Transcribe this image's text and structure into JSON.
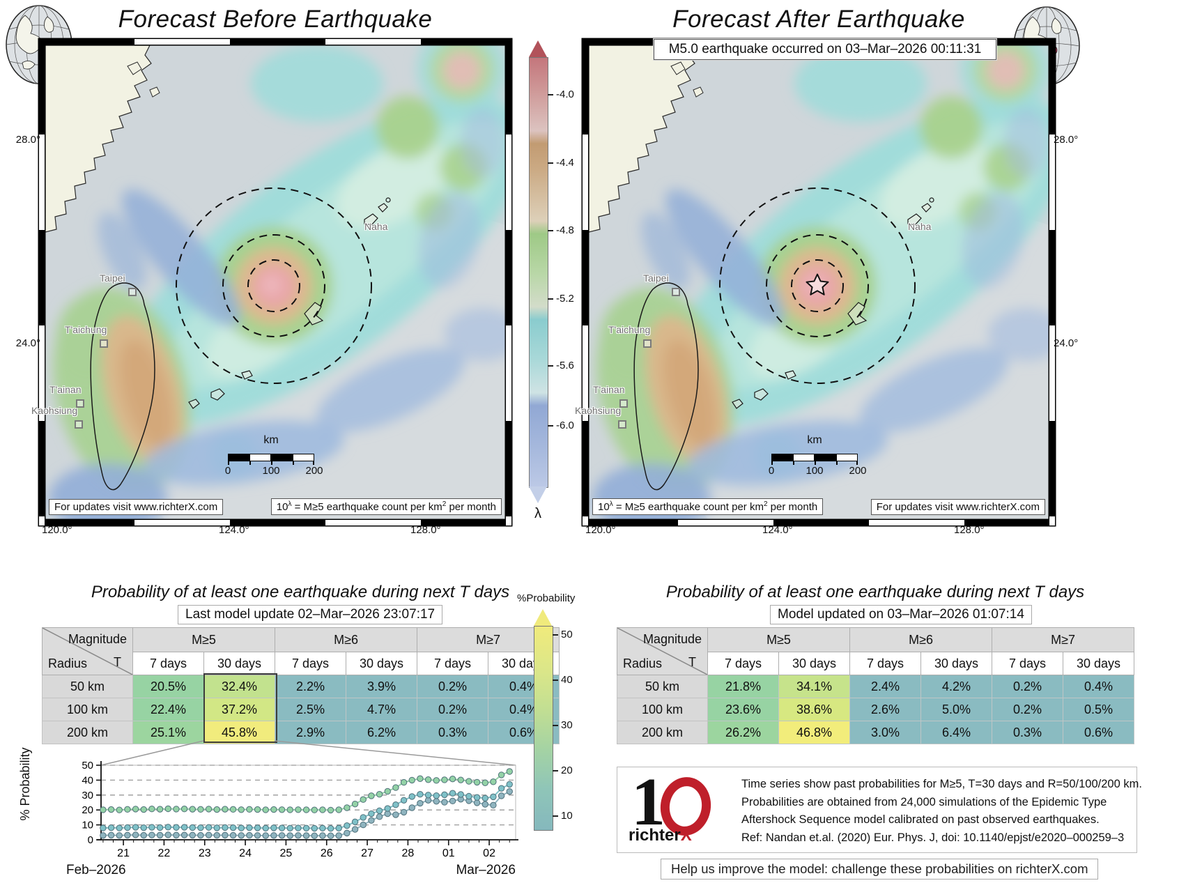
{
  "panels": {
    "left": {
      "title": "Forecast Before Earthquake"
    },
    "right": {
      "title": "Forecast After Earthquake",
      "banner": "M5.0 earthquake occurred on 03–Mar–2026 00:11:31"
    }
  },
  "map": {
    "cities": [
      "Taipei",
      "T'aichung",
      "T'ainan",
      "Kaohsiung",
      "Naha"
    ],
    "lat_ticks": [
      "28.0°",
      "24.0°"
    ],
    "lon_ticks": [
      "120.0°",
      "124.0°",
      "128.0°"
    ],
    "scalebar": {
      "unit": "km",
      "ticks": [
        "0",
        "100",
        "200"
      ]
    },
    "footer_updates": "For updates visit www.richterX.com",
    "footer_formula": {
      "p1": "10",
      "sup1": "λ",
      "p2": " = M≥5 earthquake count per km",
      "sup2": "2",
      "p3": " per month"
    }
  },
  "lambda_bar": {
    "ticks": [
      "-4.0",
      "-4.4",
      "-4.8",
      "-5.2",
      "-5.6",
      "-6.0"
    ],
    "label": "λ"
  },
  "prob_bar": {
    "title": "%Probability",
    "ticks": [
      "50",
      "40",
      "30",
      "20",
      "10"
    ]
  },
  "tables": {
    "header": {
      "magnitude": "Magnitude",
      "radius": "Radius",
      "t": "T",
      "groups": [
        "M≥5",
        "M≥6",
        "M≥7"
      ],
      "subcols": [
        "7 days",
        "30 days",
        "7 days",
        "30 days",
        "7 days",
        "30 days"
      ]
    },
    "left": {
      "title": "Probability of at least one earthquake during next T days",
      "caption": "Last model update 02–Mar–2026 23:07:17",
      "rows": [
        {
          "radius": "50 km",
          "cells": [
            {
              "v": "20.5%",
              "c": "#97d3a3"
            },
            {
              "v": "32.4%",
              "c": "#c2e28e"
            },
            {
              "v": "2.2%",
              "c": "#8abbc1"
            },
            {
              "v": "3.9%",
              "c": "#8abbc1"
            },
            {
              "v": "0.2%",
              "c": "#8abbc1"
            },
            {
              "v": "0.4%",
              "c": "#8abbc1"
            }
          ]
        },
        {
          "radius": "100 km",
          "cells": [
            {
              "v": "22.4%",
              "c": "#97d3a3"
            },
            {
              "v": "37.2%",
              "c": "#d2e785"
            },
            {
              "v": "2.5%",
              "c": "#8abbc1"
            },
            {
              "v": "4.7%",
              "c": "#8abbc1"
            },
            {
              "v": "0.2%",
              "c": "#8abbc1"
            },
            {
              "v": "0.4%",
              "c": "#8abbc1"
            }
          ]
        },
        {
          "radius": "200 km",
          "cells": [
            {
              "v": "25.1%",
              "c": "#9cd59f"
            },
            {
              "v": "45.8%",
              "c": "#f1ec7d"
            },
            {
              "v": "2.9%",
              "c": "#8abbc1"
            },
            {
              "v": "6.2%",
              "c": "#8abbc1"
            },
            {
              "v": "0.3%",
              "c": "#8abbc1"
            },
            {
              "v": "0.6%",
              "c": "#8abbc1"
            }
          ]
        }
      ]
    },
    "right": {
      "title": "Probability of at least one earthquake during next T days",
      "caption": "Model updated on 03–Mar–2026 01:07:14",
      "rows": [
        {
          "radius": "50 km",
          "cells": [
            {
              "v": "21.8%",
              "c": "#97d3a3"
            },
            {
              "v": "34.1%",
              "c": "#c6e38b"
            },
            {
              "v": "2.4%",
              "c": "#8abbc1"
            },
            {
              "v": "4.2%",
              "c": "#8abbc1"
            },
            {
              "v": "0.2%",
              "c": "#8abbc1"
            },
            {
              "v": "0.4%",
              "c": "#8abbc1"
            }
          ]
        },
        {
          "radius": "100 km",
          "cells": [
            {
              "v": "23.6%",
              "c": "#97d3a3"
            },
            {
              "v": "38.6%",
              "c": "#d7e881"
            },
            {
              "v": "2.6%",
              "c": "#8abbc1"
            },
            {
              "v": "5.0%",
              "c": "#8abbc1"
            },
            {
              "v": "0.2%",
              "c": "#8abbc1"
            },
            {
              "v": "0.5%",
              "c": "#8abbc1"
            }
          ]
        },
        {
          "radius": "200 km",
          "cells": [
            {
              "v": "26.2%",
              "c": "#9cd59f"
            },
            {
              "v": "46.8%",
              "c": "#f2ed7b"
            },
            {
              "v": "3.0%",
              "c": "#8abbc1"
            },
            {
              "v": "6.4%",
              "c": "#8abbc1"
            },
            {
              "v": "0.3%",
              "c": "#8abbc1"
            },
            {
              "v": "0.6%",
              "c": "#8abbc1"
            }
          ]
        }
      ]
    }
  },
  "chart_data": {
    "type": "line",
    "title": "",
    "ylabel": "% Probability",
    "xlabel_left": "Feb–2026",
    "xlabel_right": "Mar–2026",
    "ylim": [
      0,
      50
    ],
    "xlim": [
      20.45,
      30.65
    ],
    "grid": "dashed-horizontal",
    "legend": "none",
    "y_ticks": [
      0,
      10,
      20,
      30,
      40,
      50
    ],
    "x_ticks": [
      {
        "v": 21,
        "label": "21"
      },
      {
        "v": 22,
        "label": "22"
      },
      {
        "v": 23,
        "label": "23"
      },
      {
        "v": 24,
        "label": "24"
      },
      {
        "v": 25,
        "label": "25"
      },
      {
        "v": 26,
        "label": "26"
      },
      {
        "v": 27,
        "label": "27"
      },
      {
        "v": 28,
        "label": "28"
      },
      {
        "v": 29,
        "label": "01"
      },
      {
        "v": 30,
        "label": "02"
      }
    ],
    "x": [
      20.5,
      20.7,
      20.9,
      21.1,
      21.3,
      21.5,
      21.7,
      21.9,
      22.1,
      22.3,
      22.5,
      22.7,
      22.9,
      23.1,
      23.3,
      23.5,
      23.7,
      23.9,
      24.1,
      24.3,
      24.5,
      24.7,
      24.9,
      25.1,
      25.3,
      25.5,
      25.7,
      25.9,
      26.1,
      26.3,
      26.5,
      26.7,
      26.9,
      27.1,
      27.3,
      27.5,
      27.7,
      27.9,
      28.1,
      28.3,
      28.5,
      28.7,
      28.9,
      29.1,
      29.3,
      29.5,
      29.7,
      29.9,
      30.1,
      30.3,
      30.5
    ],
    "series": [
      {
        "name": "M≥5, T=30 days, R=200 km",
        "color": "#93d2a6",
        "values": [
          20.1,
          20.3,
          20.0,
          20.4,
          20.6,
          20.3,
          20.7,
          20.5,
          20.8,
          20.6,
          20.7,
          20.5,
          20.4,
          20.6,
          20.3,
          20.5,
          20.4,
          20.2,
          20.4,
          20.3,
          20.1,
          20.3,
          20.2,
          20.1,
          20.2,
          20.1,
          20.0,
          20.1,
          19.9,
          20.1,
          21.5,
          24.0,
          27.0,
          29.5,
          30.5,
          32.5,
          35.0,
          38.5,
          40.0,
          41.0,
          40.3,
          39.8,
          40.2,
          40.8,
          40.1,
          39.2,
          38.6,
          38.2,
          38.9,
          43.5,
          45.8
        ]
      },
      {
        "name": "M≥5, T=30 days, R=100 km",
        "color": "#7fc1c8",
        "values": [
          7.9,
          8.1,
          7.9,
          8.2,
          8.4,
          8.1,
          8.4,
          8.2,
          8.5,
          8.3,
          8.4,
          8.2,
          8.1,
          8.3,
          8.0,
          8.2,
          8.1,
          7.9,
          8.1,
          8.0,
          7.8,
          8.0,
          7.9,
          7.8,
          7.9,
          7.8,
          7.7,
          7.8,
          7.6,
          7.8,
          9.5,
          12.0,
          15.0,
          17.5,
          19.5,
          21.0,
          23.5,
          26.5,
          29.0,
          30.5,
          30.0,
          29.6,
          30.2,
          31.2,
          30.4,
          29.2,
          28.4,
          27.9,
          28.8,
          34.5,
          37.2
        ]
      },
      {
        "name": "M≥5, T=30 days, R=50 km",
        "color": "#8fb4bf",
        "values": [
          2.9,
          3.1,
          2.9,
          3.1,
          3.3,
          3.0,
          3.2,
          3.1,
          3.3,
          3.1,
          3.2,
          3.1,
          3.0,
          3.2,
          3.0,
          3.1,
          3.0,
          2.9,
          3.0,
          2.9,
          2.8,
          2.9,
          2.9,
          2.8,
          2.9,
          2.8,
          2.7,
          2.8,
          2.7,
          2.8,
          4.5,
          7.0,
          10.0,
          13.0,
          15.5,
          17.5,
          16.8,
          18.5,
          21.5,
          24.5,
          26.5,
          25.8,
          25.2,
          26.0,
          27.2,
          26.2,
          24.8,
          23.8,
          23.2,
          29.5,
          32.4
        ]
      }
    ]
  },
  "info_box": {
    "line1": "Time series show past probabilities for M≥5, T=30 days and R=50/100/200 km.",
    "line2": "Probabilities are obtained from 24,000 simulations of the Epidemic Type",
    "line3": "Aftershock Sequence model calibrated on past observed earthquakes.",
    "line4": "Ref: Nandan et.al. (2020) Eur. Phys. J, doi: 10.1140/epjst/e2020–000259–3"
  },
  "help_box": "Help us improve the model: challenge these probabilities on richterX.com",
  "logo": {
    "digit": "1",
    "wordmark": "richter",
    "x": "X"
  },
  "colors": {
    "accent_red": "#bf1f2a",
    "epicenter_pink": "#e8a6a8",
    "prob_green": "#97d3a3",
    "prob_teal": "#8abbc1",
    "prob_yellow": "#f1ec7d"
  }
}
